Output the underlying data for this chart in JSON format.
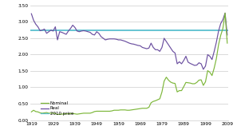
{
  "years": [
    1919,
    1920,
    1921,
    1922,
    1923,
    1924,
    1925,
    1926,
    1927,
    1928,
    1929,
    1930,
    1931,
    1932,
    1933,
    1934,
    1935,
    1936,
    1937,
    1938,
    1939,
    1940,
    1941,
    1942,
    1943,
    1944,
    1945,
    1946,
    1947,
    1948,
    1949,
    1950,
    1951,
    1952,
    1953,
    1954,
    1955,
    1956,
    1957,
    1958,
    1959,
    1960,
    1961,
    1962,
    1963,
    1964,
    1965,
    1966,
    1967,
    1968,
    1969,
    1970,
    1971,
    1972,
    1973,
    1974,
    1975,
    1976,
    1977,
    1978,
    1979,
    1980,
    1981,
    1982,
    1983,
    1984,
    1985,
    1986,
    1987,
    1988,
    1989,
    1990,
    1991,
    1992,
    1993,
    1994,
    1995,
    1996,
    1997,
    1998,
    1999,
    2000,
    2001,
    2002,
    2003,
    2004,
    2005,
    2006,
    2007,
    2008,
    2009
  ],
  "nominal": [
    0.25,
    0.3,
    0.26,
    0.25,
    0.22,
    0.21,
    0.22,
    0.23,
    0.21,
    0.21,
    0.21,
    0.2,
    0.17,
    0.18,
    0.18,
    0.19,
    0.19,
    0.19,
    0.2,
    0.2,
    0.19,
    0.18,
    0.19,
    0.2,
    0.21,
    0.21,
    0.21,
    0.21,
    0.23,
    0.26,
    0.27,
    0.27,
    0.27,
    0.27,
    0.27,
    0.27,
    0.27,
    0.28,
    0.3,
    0.3,
    0.3,
    0.31,
    0.31,
    0.31,
    0.3,
    0.3,
    0.31,
    0.32,
    0.33,
    0.34,
    0.35,
    0.36,
    0.36,
    0.36,
    0.39,
    0.53,
    0.57,
    0.59,
    0.62,
    0.65,
    0.86,
    1.19,
    1.31,
    1.22,
    1.16,
    1.13,
    1.12,
    0.86,
    0.9,
    0.9,
    1.02,
    1.15,
    1.14,
    1.13,
    1.11,
    1.11,
    1.15,
    1.22,
    1.23,
    1.06,
    1.17,
    1.51,
    1.46,
    1.36,
    1.59,
    1.88,
    2.3,
    2.59,
    2.8,
    3.27,
    2.35
  ],
  "real": [
    3.25,
    3.05,
    2.93,
    2.85,
    2.73,
    2.75,
    2.78,
    2.65,
    2.7,
    2.75,
    2.72,
    2.85,
    2.45,
    2.7,
    2.68,
    2.65,
    2.62,
    2.72,
    2.8,
    2.9,
    2.83,
    2.72,
    2.7,
    2.72,
    2.73,
    2.72,
    2.7,
    2.68,
    2.62,
    2.6,
    2.7,
    2.65,
    2.55,
    2.5,
    2.45,
    2.47,
    2.48,
    2.48,
    2.48,
    2.47,
    2.45,
    2.45,
    2.43,
    2.41,
    2.38,
    2.35,
    2.33,
    2.32,
    2.3,
    2.28,
    2.27,
    2.22,
    2.2,
    2.18,
    2.2,
    2.35,
    2.22,
    2.15,
    2.15,
    2.1,
    2.22,
    2.5,
    2.4,
    2.3,
    2.2,
    2.1,
    2.05,
    1.72,
    1.78,
    1.72,
    1.82,
    1.95,
    1.77,
    1.73,
    1.7,
    1.67,
    1.68,
    1.75,
    1.72,
    1.55,
    1.65,
    2.0,
    1.95,
    1.85,
    2.1,
    2.38,
    2.72,
    2.95,
    3.07,
    3.27,
    2.6
  ],
  "price_2010": 2.75,
  "nominal_color": "#7db73a",
  "real_color": "#6b4fa0",
  "line_2010_color": "#5bbfcf",
  "xlim": [
    1919,
    2009
  ],
  "ylim": [
    0.0,
    3.5
  ],
  "yticks": [
    0.0,
    0.5,
    1.0,
    1.5,
    2.0,
    2.5,
    3.0,
    3.5
  ],
  "xticks": [
    1919,
    1929,
    1939,
    1949,
    1959,
    1969,
    1979,
    1989,
    1999,
    2009
  ],
  "legend_labels": [
    "Nominal",
    "Real",
    "2010 price"
  ],
  "background_color": "#ffffff",
  "grid_color": "#cccccc"
}
